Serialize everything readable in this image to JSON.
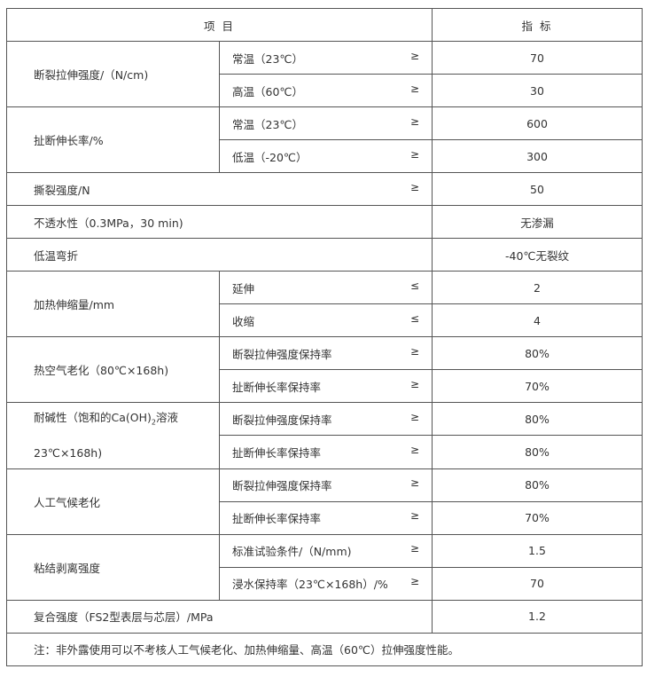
{
  "header": {
    "item": "项 目",
    "index": "指 标"
  },
  "rows": [
    {
      "name": "断裂拉伸强度/（N/cm)",
      "sub": [
        {
          "label": "常温（23℃）",
          "op": "≥",
          "value": "70"
        },
        {
          "label": "高温（60℃）",
          "op": "≥",
          "value": "30"
        }
      ]
    },
    {
      "name": "扯断伸长率/%",
      "sub": [
        {
          "label": "常温（23℃）",
          "op": "≥",
          "value": "600"
        },
        {
          "label": "低温（-20℃）",
          "op": "≥",
          "value": "300"
        }
      ]
    },
    {
      "name": "撕裂强度/N",
      "op": "≥",
      "value": "50"
    },
    {
      "name": "不透水性（0.3MPa，30 min)",
      "value": "无渗漏"
    },
    {
      "name": "低温弯折",
      "value": "-40℃无裂纹"
    },
    {
      "name": "加热伸缩量/mm",
      "sub": [
        {
          "label": "延伸",
          "op": "≤",
          "value": "2"
        },
        {
          "label": "收缩",
          "op": "≤",
          "value": "4"
        }
      ]
    },
    {
      "name": "热空气老化（80℃×168h)",
      "sub": [
        {
          "label": "断裂拉伸强度保持率",
          "op": "≥",
          "value": "80%"
        },
        {
          "label": "扯断伸长率保持率",
          "op": "≥",
          "value": "70%"
        }
      ]
    },
    {
      "name_a": "耐碱性（饱和的Ca(OH)",
      "name_sub": "2",
      "name_b": "溶液",
      "name_c": "23℃×168h)",
      "sub": [
        {
          "label": "断裂拉伸强度保持率",
          "op": "≥",
          "value": "80%"
        },
        {
          "label": "扯断伸长率保持率",
          "op": "≥",
          "value": "80%"
        }
      ]
    },
    {
      "name": "人工气候老化",
      "sub": [
        {
          "label": "断裂拉伸强度保持率",
          "op": "≥",
          "value": "80%"
        },
        {
          "label": "扯断伸长率保持率",
          "op": "≥",
          "value": "70%"
        }
      ]
    },
    {
      "name": "粘结剥离强度",
      "sub": [
        {
          "label": "标准试验条件/（N/mm)",
          "op": "≥",
          "value": "1.5"
        },
        {
          "label": "浸水保持率（23℃×168h）/%",
          "op": "≥",
          "value": "70"
        }
      ]
    },
    {
      "name": "复合强度（FS2型表层与芯层）/MPa",
      "value": "1.2"
    }
  ],
  "note": "注：非外露使用可以不考核人工气候老化、加热伸缩量、高温（60℃）拉伸强度性能。"
}
